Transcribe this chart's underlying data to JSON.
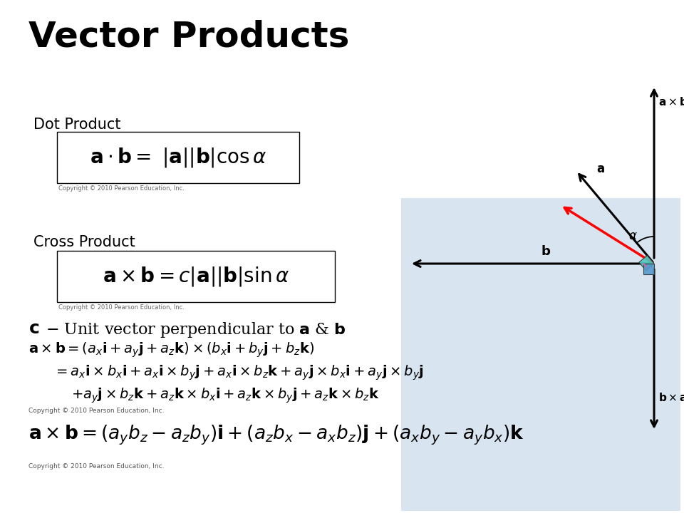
{
  "title": "Vector Products",
  "title_fontsize": 36,
  "bg_color": "#ffffff",
  "diagram_bg": "#d8e4f0",
  "dot_label": "Dot Product",
  "cross_label": "Cross Product",
  "copyright": "Copyright © 2010 Pearson Education, Inc."
}
